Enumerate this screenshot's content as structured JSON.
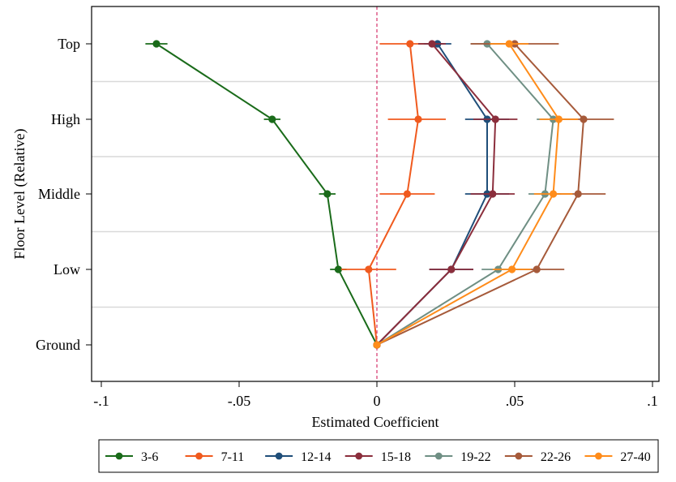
{
  "chart_data": {
    "type": "line",
    "title": "",
    "xlabel": "Estimated Coefficient",
    "ylabel": "Floor Level (Relative)",
    "xlim": [
      -0.1,
      0.1
    ],
    "xticks": [
      -0.1,
      -0.05,
      0,
      0.05,
      0.1
    ],
    "xtick_labels": [
      "-.1",
      "-.05",
      "0",
      ".05",
      ".1"
    ],
    "categories": [
      "Top",
      "High",
      "Middle",
      "Low",
      "Ground"
    ],
    "reference_line": {
      "x": 0,
      "style": "dashed",
      "color": "#d6336c"
    },
    "grid": "horizontal",
    "legend_position": "bottom",
    "series": [
      {
        "name": "3-6",
        "color": "#1a6b1a",
        "values": [
          -0.08,
          -0.038,
          -0.018,
          -0.014,
          0.0
        ],
        "ci": [
          [
            -0.084,
            -0.076
          ],
          [
            -0.041,
            -0.035
          ],
          [
            -0.021,
            -0.015
          ],
          [
            -0.017,
            -0.011
          ],
          [
            0.0,
            0.0
          ]
        ]
      },
      {
        "name": "7-11",
        "color": "#f05a1e",
        "values": [
          0.012,
          0.015,
          0.011,
          -0.003,
          0.0
        ],
        "ci": [
          [
            0.001,
            0.024
          ],
          [
            0.004,
            0.025
          ],
          [
            0.001,
            0.021
          ],
          [
            -0.013,
            0.007
          ],
          [
            0.0,
            0.0
          ]
        ]
      },
      {
        "name": "12-14",
        "color": "#1f4e79",
        "values": [
          0.022,
          0.04,
          0.04,
          0.027,
          0.0
        ],
        "ci": [
          [
            0.017,
            0.027
          ],
          [
            0.032,
            0.048
          ],
          [
            0.032,
            0.048
          ],
          [
            0.019,
            0.035
          ],
          [
            0.0,
            0.0
          ]
        ]
      },
      {
        "name": "15-18",
        "color": "#8b2e3c",
        "values": [
          0.02,
          0.043,
          0.042,
          0.027,
          0.0
        ],
        "ci": [
          [
            0.015,
            0.025
          ],
          [
            0.035,
            0.051
          ],
          [
            0.034,
            0.05
          ],
          [
            0.019,
            0.035
          ],
          [
            0.0,
            0.0
          ]
        ]
      },
      {
        "name": "19-22",
        "color": "#6f8f84",
        "values": [
          0.04,
          0.064,
          0.061,
          0.044,
          0.0
        ],
        "ci": [
          [
            0.034,
            0.046
          ],
          [
            0.058,
            0.07
          ],
          [
            0.055,
            0.067
          ],
          [
            0.038,
            0.05
          ],
          [
            0.0,
            0.0
          ]
        ]
      },
      {
        "name": "22-26",
        "color": "#a65a3a",
        "values": [
          0.05,
          0.075,
          0.073,
          0.058,
          0.0
        ],
        "ci": [
          [
            0.034,
            0.066
          ],
          [
            0.064,
            0.086
          ],
          [
            0.063,
            0.083
          ],
          [
            0.048,
            0.068
          ],
          [
            0.0,
            0.0
          ]
        ]
      },
      {
        "name": "27-40",
        "color": "#ff8c1a",
        "values": [
          0.048,
          0.066,
          0.064,
          0.049,
          0.0
        ],
        "ci": [
          [
            0.041,
            0.055
          ],
          [
            0.059,
            0.073
          ],
          [
            0.057,
            0.071
          ],
          [
            0.042,
            0.056
          ],
          [
            0.0,
            0.0
          ]
        ]
      }
    ]
  }
}
